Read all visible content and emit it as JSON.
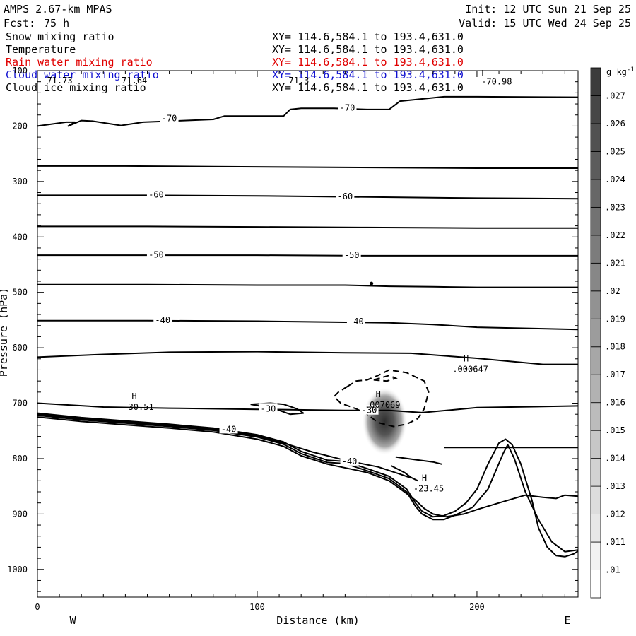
{
  "header": {
    "model": "AMPS 2.67-km MPAS",
    "init": "Init: 12 UTC Sun 21 Sep 25",
    "fcst_label": "Fcst:",
    "fcst_value": "75 h",
    "valid": "Valid: 15 UTC Wed 24 Sep 25",
    "fields": [
      {
        "name": "Snow mixing ratio",
        "xy": "XY= 114.6,584.1 to 193.4,631.0",
        "color": "#000000"
      },
      {
        "name": "Temperature",
        "xy": "XY= 114.6,584.1 to 193.4,631.0",
        "color": "#000000"
      },
      {
        "name": "Rain water mixing ratio",
        "xy": "XY= 114.6,584.1 to 193.4,631.0",
        "color": "#e00000"
      },
      {
        "name": "Cloud water mixing ratio",
        "xy": "XY= 114.6,584.1 to 193.4,631.0",
        "color": "#1010d0"
      },
      {
        "name": "Cloud ice mixing ratio",
        "xy": "XY= 114.6,584.1 to 193.4,631.0",
        "color": "#000000"
      }
    ]
  },
  "chart_data": {
    "type": "contour",
    "xlabel": "Distance (km)",
    "ylabel": "Pressure (hPa)",
    "xlim": [
      0,
      246
    ],
    "ylim": [
      1050,
      100
    ],
    "x_ticks": [
      0,
      100,
      200
    ],
    "y_ticks": [
      100,
      200,
      300,
      400,
      500,
      600,
      700,
      800,
      900,
      1000
    ],
    "x_minor_step": 10,
    "y_minor_step": 20,
    "left_end_label": "W",
    "right_end_label": "E",
    "colorbar": {
      "unit": "g kg",
      "unit_exp": "-1",
      "labels": [
        ".01",
        ".011",
        ".012",
        ".013",
        ".014",
        ".015",
        ".016",
        ".017",
        ".018",
        ".019",
        ".02",
        ".021",
        ".022",
        ".023",
        ".024",
        ".025",
        ".026",
        ".027"
      ],
      "min": 0.01,
      "max": 0.027,
      "gray_light": "#f2f2f2",
      "gray_dark": "#3c3c3c"
    },
    "isotherms": [
      {
        "points": [
          [
            0,
            200
          ],
          [
            13,
            193
          ],
          [
            17,
            193
          ],
          [
            14,
            200
          ],
          [
            20,
            190
          ],
          [
            25,
            191
          ],
          [
            38,
            199
          ],
          [
            48,
            193
          ],
          [
            80,
            188
          ],
          [
            85,
            182
          ],
          [
            112,
            182
          ],
          [
            115,
            170
          ],
          [
            120,
            168
          ],
          [
            135,
            168
          ],
          [
            150,
            170
          ],
          [
            160,
            170
          ],
          [
            165,
            155
          ],
          [
            185,
            147
          ],
          [
            200,
            147
          ],
          [
            246,
            148
          ]
        ]
      },
      {
        "points": [
          [
            0,
            272
          ],
          [
            40,
            272
          ],
          [
            80,
            273
          ],
          [
            120,
            274
          ],
          [
            160,
            275
          ],
          [
            200,
            276
          ],
          [
            246,
            276
          ]
        ]
      },
      {
        "points": [
          [
            0,
            325
          ],
          [
            50,
            325
          ],
          [
            100,
            326
          ],
          [
            150,
            328
          ],
          [
            200,
            330
          ],
          [
            246,
            331
          ]
        ]
      },
      {
        "points": [
          [
            0,
            381
          ],
          [
            50,
            381
          ],
          [
            100,
            382
          ],
          [
            150,
            383
          ],
          [
            200,
            384
          ],
          [
            246,
            384
          ]
        ]
      },
      {
        "points": [
          [
            0,
            433
          ],
          [
            50,
            433
          ],
          [
            100,
            433
          ],
          [
            150,
            434
          ],
          [
            200,
            434
          ],
          [
            246,
            434
          ]
        ]
      },
      {
        "points": [
          [
            0,
            486
          ],
          [
            50,
            486
          ],
          [
            100,
            487
          ],
          [
            140,
            487
          ],
          [
            160,
            489
          ],
          [
            180,
            490
          ],
          [
            200,
            491
          ],
          [
            246,
            491
          ]
        ]
      },
      {
        "points": [
          [
            0,
            551
          ],
          [
            50,
            551
          ],
          [
            100,
            552
          ],
          [
            140,
            554
          ],
          [
            160,
            555
          ],
          [
            180,
            558
          ],
          [
            200,
            563
          ],
          [
            246,
            567
          ]
        ]
      },
      {
        "points": [
          [
            0,
            617
          ],
          [
            30,
            612
          ],
          [
            60,
            608
          ],
          [
            100,
            607
          ],
          [
            140,
            609
          ],
          [
            170,
            610
          ],
          [
            200,
            619
          ],
          [
            230,
            630
          ],
          [
            246,
            630
          ]
        ]
      },
      {
        "points": [
          [
            0,
            700
          ],
          [
            30,
            707
          ],
          [
            60,
            709
          ],
          [
            100,
            711
          ],
          [
            140,
            713
          ],
          [
            160,
            713
          ],
          [
            175,
            717
          ],
          [
            200,
            708
          ],
          [
            246,
            705
          ]
        ]
      },
      {
        "points": [
          [
            185,
            780
          ],
          [
            246,
            780
          ]
        ]
      },
      {
        "points": [
          [
            97,
            702
          ],
          [
            106,
            700
          ],
          [
            112,
            702
          ],
          [
            118,
            710
          ],
          [
            121,
            718
          ],
          [
            115,
            720
          ],
          [
            108,
            710
          ],
          [
            97,
            702
          ]
        ]
      }
    ],
    "temperature_labels": [
      {
        "value": "-70",
        "x": 60,
        "p": 186
      },
      {
        "value": "-70",
        "x": 141,
        "p": 167
      },
      {
        "value": "-60",
        "x": 54,
        "p": 324
      },
      {
        "value": "-60",
        "x": 140,
        "p": 327
      },
      {
        "value": "-50",
        "x": 54,
        "p": 432
      },
      {
        "value": "-50",
        "x": 143,
        "p": 433
      },
      {
        "value": "-40",
        "x": 57,
        "p": 550
      },
      {
        "value": "-40",
        "x": 145,
        "p": 553
      },
      {
        "value": "-30",
        "x": 105,
        "p": 710
      },
      {
        "value": "-30",
        "x": 151,
        "p": 713
      },
      {
        "value": "-40",
        "x": 87,
        "p": 747
      },
      {
        "value": "-40",
        "x": 142,
        "p": 805
      }
    ],
    "terrain": [
      {
        "points": [
          [
            0,
            718
          ],
          [
            20,
            726
          ],
          [
            40,
            732
          ],
          [
            60,
            738
          ],
          [
            80,
            745
          ],
          [
            100,
            757
          ],
          [
            112,
            770
          ],
          [
            120,
            787
          ],
          [
            132,
            803
          ],
          [
            140,
            805
          ],
          [
            150,
            818
          ],
          [
            160,
            832
          ],
          [
            168,
            855
          ],
          [
            172,
            880
          ],
          [
            175,
            895
          ],
          [
            180,
            905
          ],
          [
            185,
            903
          ],
          [
            190,
            895
          ],
          [
            195,
            880
          ],
          [
            200,
            855
          ],
          [
            205,
            810
          ],
          [
            210,
            772
          ],
          [
            213,
            765
          ],
          [
            216,
            775
          ],
          [
            220,
            810
          ],
          [
            225,
            875
          ],
          [
            228,
            925
          ],
          [
            232,
            960
          ],
          [
            236,
            975
          ],
          [
            240,
            977
          ],
          [
            244,
            972
          ],
          [
            246,
            967
          ]
        ]
      },
      {
        "points": [
          [
            0,
            722
          ],
          [
            20,
            730
          ],
          [
            40,
            736
          ],
          [
            60,
            742
          ],
          [
            80,
            749
          ],
          [
            100,
            761
          ],
          [
            112,
            774
          ],
          [
            120,
            791
          ],
          [
            132,
            807
          ],
          [
            140,
            809
          ],
          [
            150,
            822
          ],
          [
            160,
            836
          ],
          [
            168,
            860
          ],
          [
            172,
            886
          ],
          [
            175,
            900
          ],
          [
            180,
            910
          ],
          [
            185,
            910
          ],
          [
            190,
            902
          ],
          [
            198,
            888
          ],
          [
            205,
            855
          ],
          [
            212,
            790
          ],
          [
            214,
            775
          ],
          [
            217,
            800
          ],
          [
            222,
            860
          ],
          [
            228,
            910
          ],
          [
            234,
            950
          ],
          [
            240,
            968
          ],
          [
            246,
            965
          ]
        ]
      },
      {
        "points": [
          [
            0,
            725
          ],
          [
            20,
            733
          ],
          [
            40,
            739
          ],
          [
            60,
            745
          ],
          [
            80,
            752
          ],
          [
            100,
            765
          ],
          [
            112,
            778
          ],
          [
            120,
            795
          ],
          [
            132,
            810
          ],
          [
            150,
            825
          ],
          [
            160,
            840
          ],
          [
            168,
            863
          ],
          [
            172,
            875
          ],
          [
            176,
            890
          ],
          [
            180,
            900
          ],
          [
            186,
            905
          ],
          [
            194,
            900
          ],
          [
            200,
            892
          ],
          [
            210,
            880
          ],
          [
            222,
            866
          ],
          [
            230,
            870
          ],
          [
            236,
            872
          ],
          [
            240,
            866
          ],
          [
            246,
            868
          ]
        ]
      },
      {
        "points": [
          [
            0,
            720
          ],
          [
            20,
            728
          ],
          [
            40,
            734
          ],
          [
            60,
            740
          ],
          [
            80,
            747
          ],
          [
            100,
            759
          ],
          [
            112,
            772
          ],
          [
            125,
            788
          ],
          [
            140,
            803
          ],
          [
            155,
            815
          ],
          [
            165,
            828
          ],
          [
            170,
            835
          ]
        ]
      },
      {
        "points": [
          [
            161,
            813
          ],
          [
            167,
            825
          ],
          [
            170,
            834
          ],
          [
            173,
            840
          ]
        ]
      },
      {
        "points": [
          [
            163,
            797
          ],
          [
            172,
            802
          ],
          [
            180,
            806
          ],
          [
            184,
            810
          ]
        ]
      }
    ],
    "snow_contour_dashed": [
      {
        "points": [
          [
            141,
            670
          ],
          [
            145,
            660
          ],
          [
            150,
            658
          ],
          [
            155,
            650
          ],
          [
            160,
            640
          ],
          [
            168,
            645
          ],
          [
            176,
            660
          ],
          [
            178,
            680
          ],
          [
            176,
            710
          ],
          [
            173,
            728
          ],
          [
            168,
            738
          ],
          [
            162,
            742
          ],
          [
            155,
            735
          ],
          [
            150,
            720
          ],
          [
            145,
            710
          ],
          [
            138,
            700
          ],
          [
            135,
            688
          ],
          [
            137,
            680
          ],
          [
            141,
            670
          ]
        ]
      },
      {
        "points": [
          [
            153,
            658
          ],
          [
            160,
            650
          ],
          [
            163,
            655
          ],
          [
            159,
            660
          ],
          [
            153,
            658
          ]
        ]
      }
    ],
    "shaded_max": {
      "x": 158,
      "p": 720,
      "value": 0.027
    },
    "extrema": [
      {
        "kind": "H",
        "value": "-30.51",
        "x": 46,
        "p": 693
      },
      {
        "kind": "H",
        "value": ".000647",
        "x": 197,
        "p": 625
      },
      {
        "kind": "H",
        "value": ".007069",
        "x": 157,
        "p": 689
      },
      {
        "kind": "H",
        "value": "-23.45",
        "x": 178,
        "p": 840
      }
    ],
    "top_values": [
      {
        "value": "-71.73",
        "x": 2,
        "p": 123
      },
      {
        "value": "-71.64",
        "x": 36,
        "p": 123
      },
      {
        "value": "-71.3",
        "x": 112,
        "p": 123
      },
      {
        "value": "L",
        "x": 202,
        "p": 110
      },
      {
        "value": "-70.98",
        "x": 202,
        "p": 125
      }
    ]
  }
}
